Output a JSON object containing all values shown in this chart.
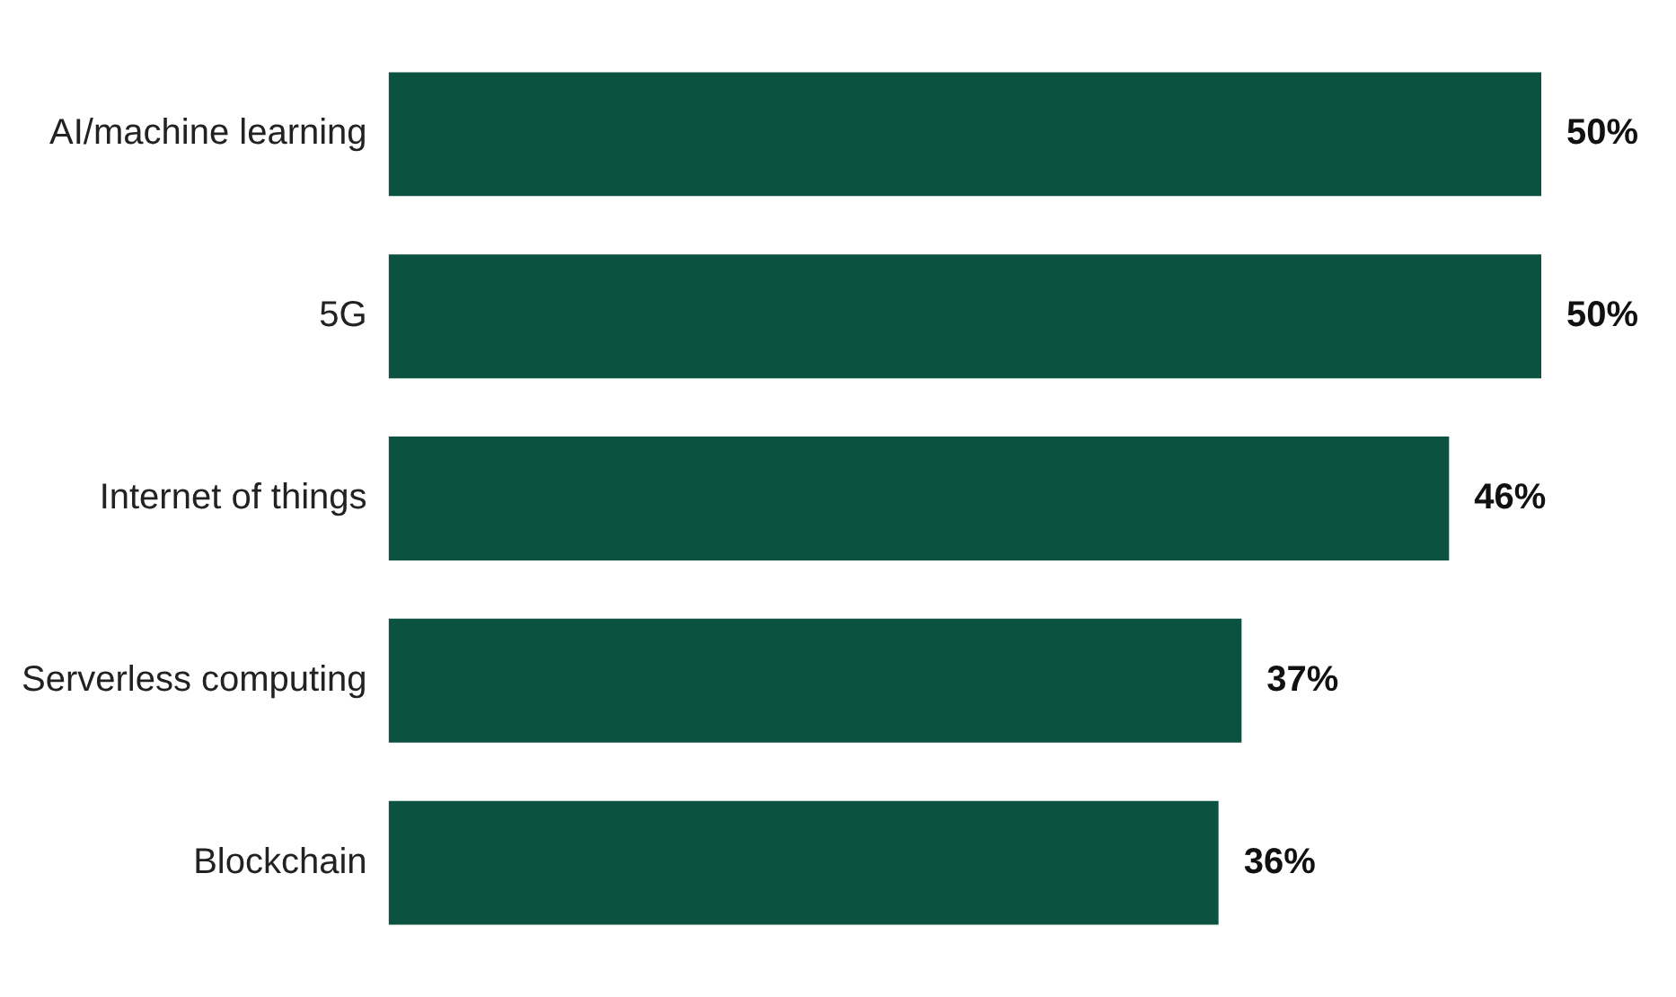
{
  "chart_data": {
    "type": "bar",
    "orientation": "horizontal",
    "categories": [
      "AI/machine learning",
      "5G",
      "Internet of things",
      "Serverless computing",
      "Blockchain"
    ],
    "values": [
      50,
      50,
      46,
      37,
      36
    ],
    "value_labels": [
      "50%",
      "50%",
      "46%",
      "37%",
      "36%"
    ],
    "color": "#0b5340",
    "legend": false,
    "tick_labels": "y"
  }
}
